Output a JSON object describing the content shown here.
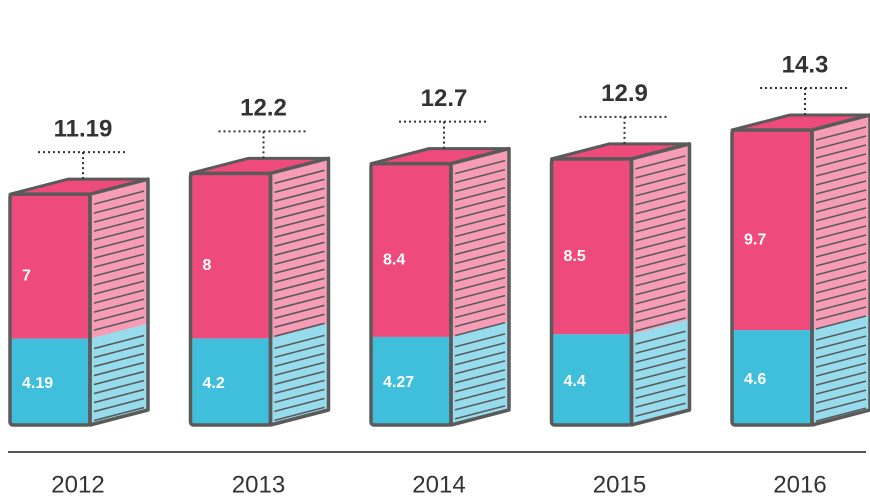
{
  "chart_data": {
    "type": "stacked-bar",
    "categories": [
      "2012",
      "2013",
      "2014",
      "2015",
      "2016"
    ],
    "series": [
      {
        "color": "#3fbfdc",
        "values": [
          4.19,
          4.2,
          4.27,
          4.4,
          4.6
        ]
      },
      {
        "color": "#ee4a7c",
        "values": [
          7,
          8,
          8.4,
          8.5,
          9.7
        ]
      }
    ],
    "totals": [
      11.19,
      12.2,
      12.7,
      12.9,
      14.3
    ]
  }
}
